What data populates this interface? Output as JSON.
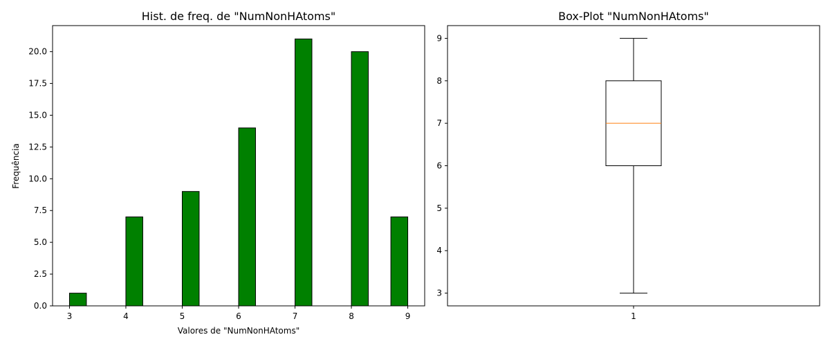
{
  "chart_data": [
    {
      "type": "bar",
      "title": "Hist. de freq. de \"NumNonHAtoms\"",
      "xlabel": "Valores de \"NumNonHAtoms\"",
      "ylabel": "Frequência",
      "bars": [
        {
          "x": 3,
          "value": 1
        },
        {
          "x": 4,
          "value": 7
        },
        {
          "x": 5,
          "value": 9
        },
        {
          "x": 6,
          "value": 14
        },
        {
          "x": 7,
          "value": 21
        },
        {
          "x": 8,
          "value": 20
        },
        {
          "x": 9,
          "value": 7
        }
      ],
      "xticks": [
        "3",
        "4",
        "5",
        "6",
        "7",
        "8",
        "9"
      ],
      "yticks": [
        "0.0",
        "2.5",
        "5.0",
        "7.5",
        "10.0",
        "12.5",
        "15.0",
        "17.5",
        "20.0"
      ],
      "xlim": [
        2.7,
        9.3
      ],
      "ylim": [
        0,
        22.05
      ],
      "bar_color": "#008000",
      "edge_color": "#000000",
      "grid": false
    },
    {
      "type": "box",
      "title": "Box-Plot \"NumNonHAtoms\"",
      "xlabel": "",
      "ylabel": "",
      "categories": [
        "1"
      ],
      "box": {
        "min": 3,
        "q1": 6,
        "median": 7,
        "q3": 8,
        "max": 9
      },
      "yticks": [
        "3",
        "4",
        "5",
        "6",
        "7",
        "8",
        "9"
      ],
      "ylim": [
        2.7,
        9.3
      ],
      "median_color": "#ff7f0e",
      "grid": false
    }
  ]
}
